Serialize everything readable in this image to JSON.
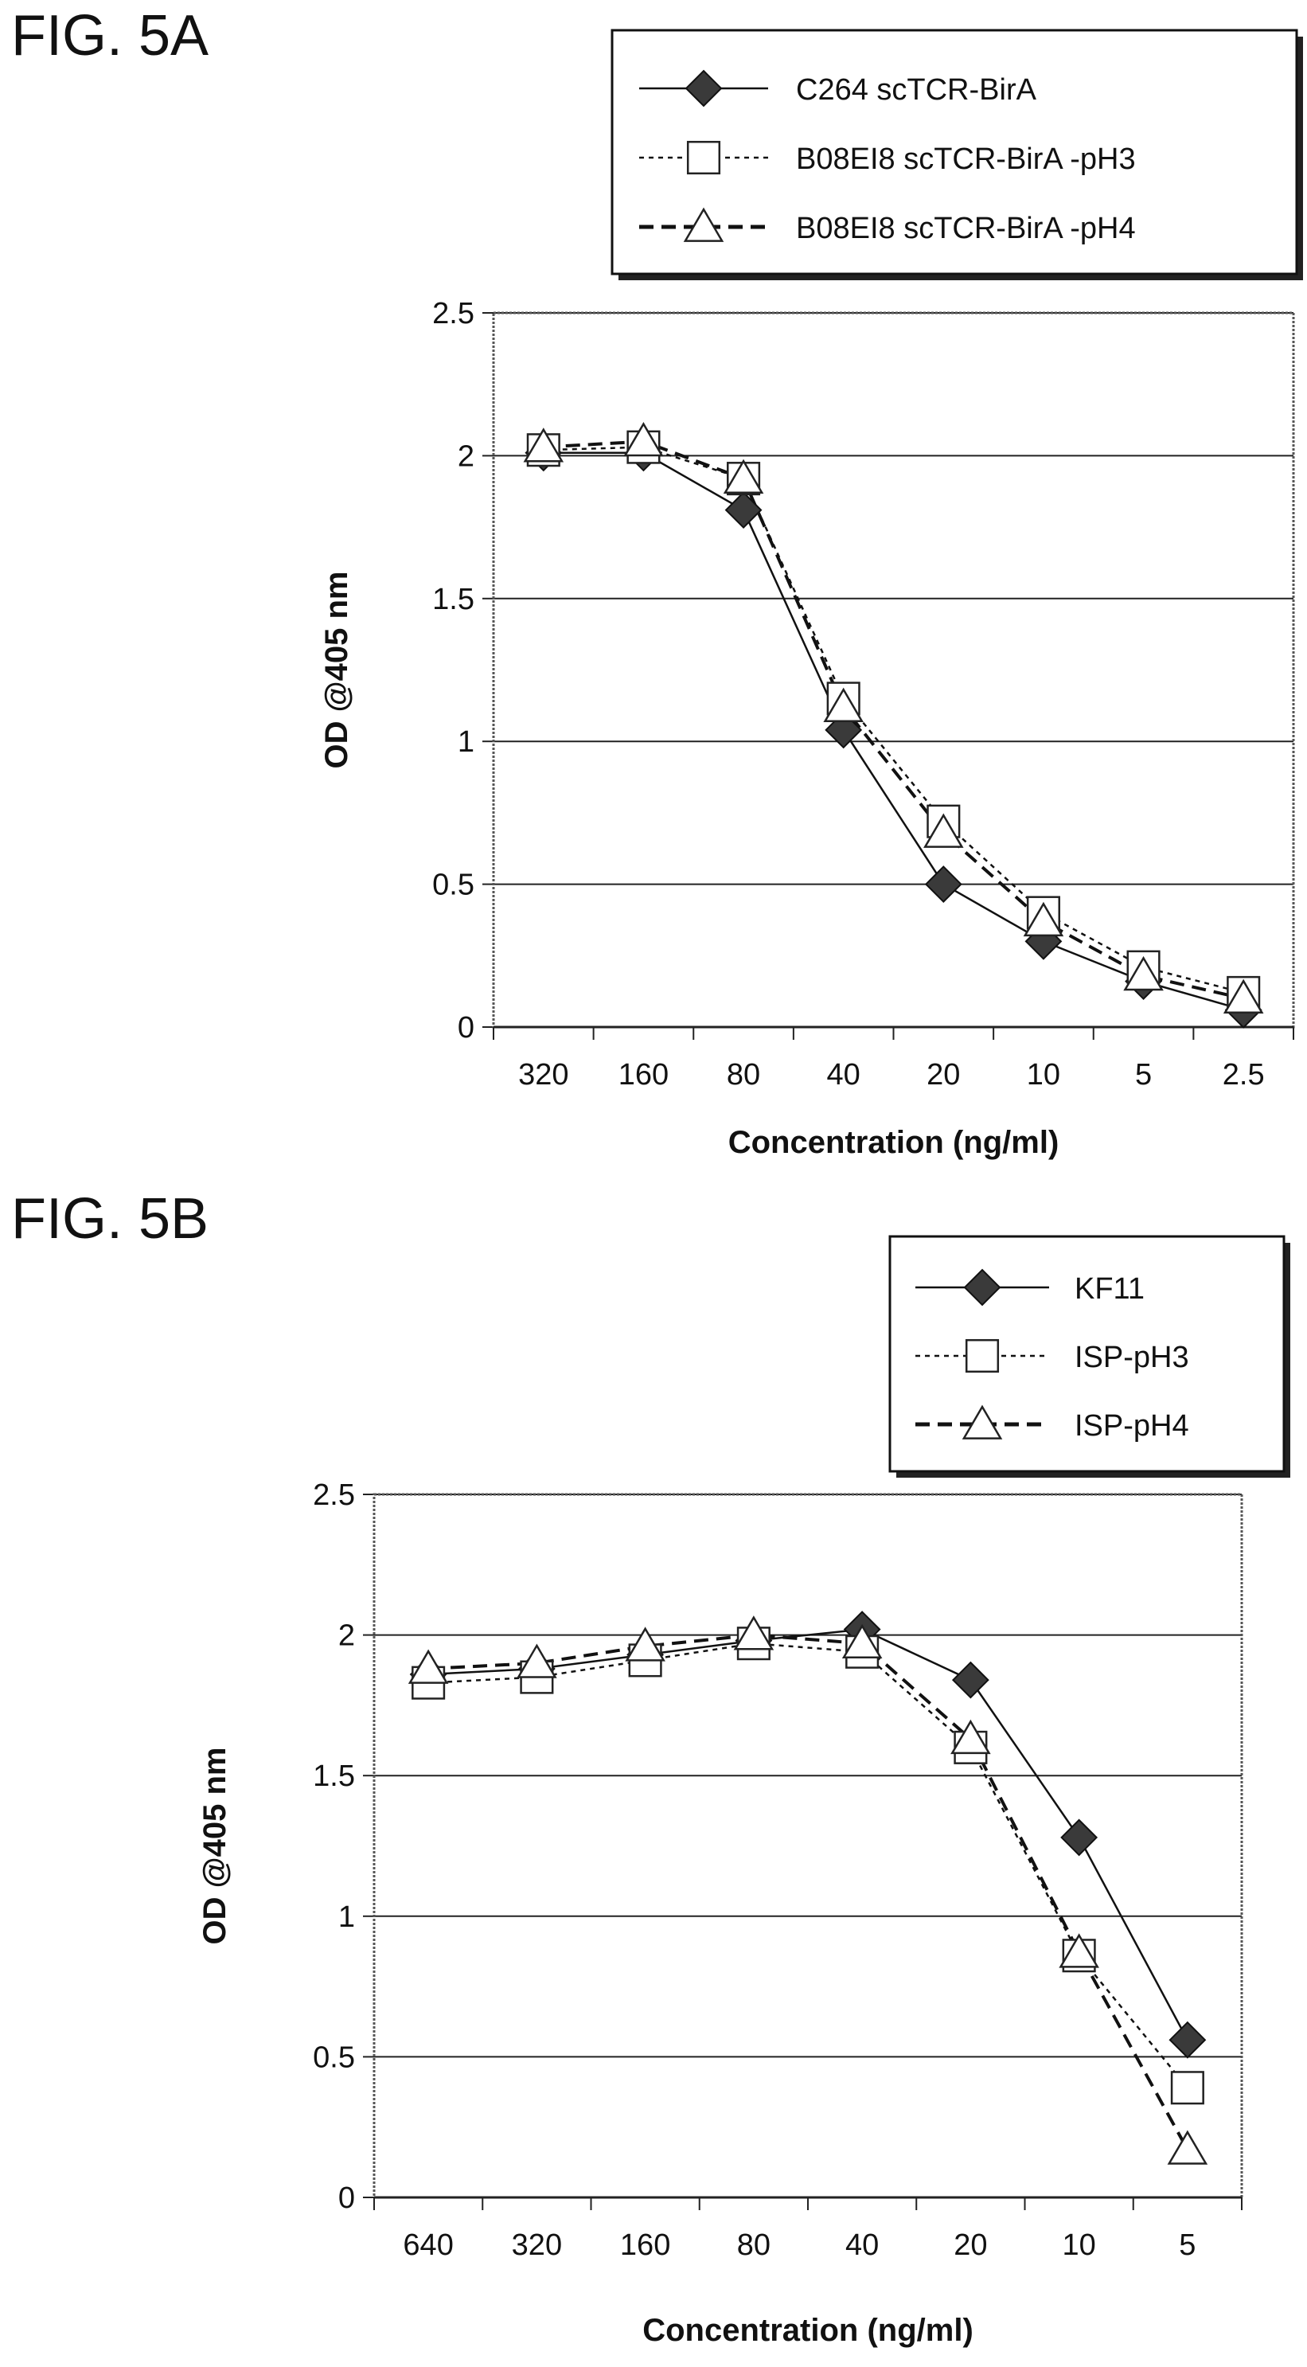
{
  "figures": [
    {
      "id": "fig5a",
      "label": "FIG. 5A"
    },
    {
      "id": "fig5b",
      "label": "FIG. 5B"
    }
  ],
  "chart_data": [
    {
      "type": "line",
      "title": "",
      "xlabel": "Concentration (ng/ml)",
      "ylabel": "OD @405 nm",
      "categories": [
        "320",
        "160",
        "80",
        "40",
        "20",
        "10",
        "5",
        "2.5"
      ],
      "ylim": [
        0,
        2.5
      ],
      "yticks": [
        "0",
        "0.5",
        "1",
        "1.5",
        "2",
        "2.5"
      ],
      "grid": true,
      "legend_position": "top-right",
      "series": [
        {
          "name": "C264 scTCR-BirA",
          "marker": "diamond",
          "line": "solid",
          "values": [
            2.01,
            2.01,
            1.81,
            1.04,
            0.5,
            0.3,
            0.16,
            0.06
          ]
        },
        {
          "name": "B08EI8 scTCR-BirA -pH3",
          "marker": "square",
          "line": "dotted",
          "values": [
            2.02,
            2.03,
            1.92,
            1.15,
            0.72,
            0.4,
            0.21,
            0.12
          ]
        },
        {
          "name": "B08EI8 scTCR-BirA -pH4",
          "marker": "triangle",
          "line": "dashed",
          "values": [
            2.03,
            2.05,
            1.92,
            1.12,
            0.68,
            0.37,
            0.18,
            0.1
          ]
        }
      ]
    },
    {
      "type": "line",
      "title": "",
      "xlabel": "Concentration (ng/ml)",
      "ylabel": "OD @405 nm",
      "categories": [
        "640",
        "320",
        "160",
        "80",
        "40",
        "20",
        "10",
        "5"
      ],
      "ylim": [
        0,
        2.5
      ],
      "yticks": [
        "0",
        "0.5",
        "1",
        "1.5",
        "2",
        "2.5"
      ],
      "grid": true,
      "legend_position": "top-right",
      "series": [
        {
          "name": "KF11",
          "marker": "diamond",
          "line": "solid",
          "values": [
            1.86,
            1.88,
            1.93,
            1.98,
            2.02,
            1.84,
            1.28,
            0.56
          ]
        },
        {
          "name": "ISP-pH3",
          "marker": "square",
          "line": "dotted",
          "values": [
            1.83,
            1.85,
            1.91,
            1.97,
            1.94,
            1.6,
            0.86,
            0.39
          ]
        },
        {
          "name": "ISP-pH4",
          "marker": "triangle",
          "line": "dashed",
          "values": [
            1.88,
            1.9,
            1.96,
            2.0,
            1.97,
            1.63,
            0.87,
            0.17
          ]
        }
      ]
    }
  ]
}
